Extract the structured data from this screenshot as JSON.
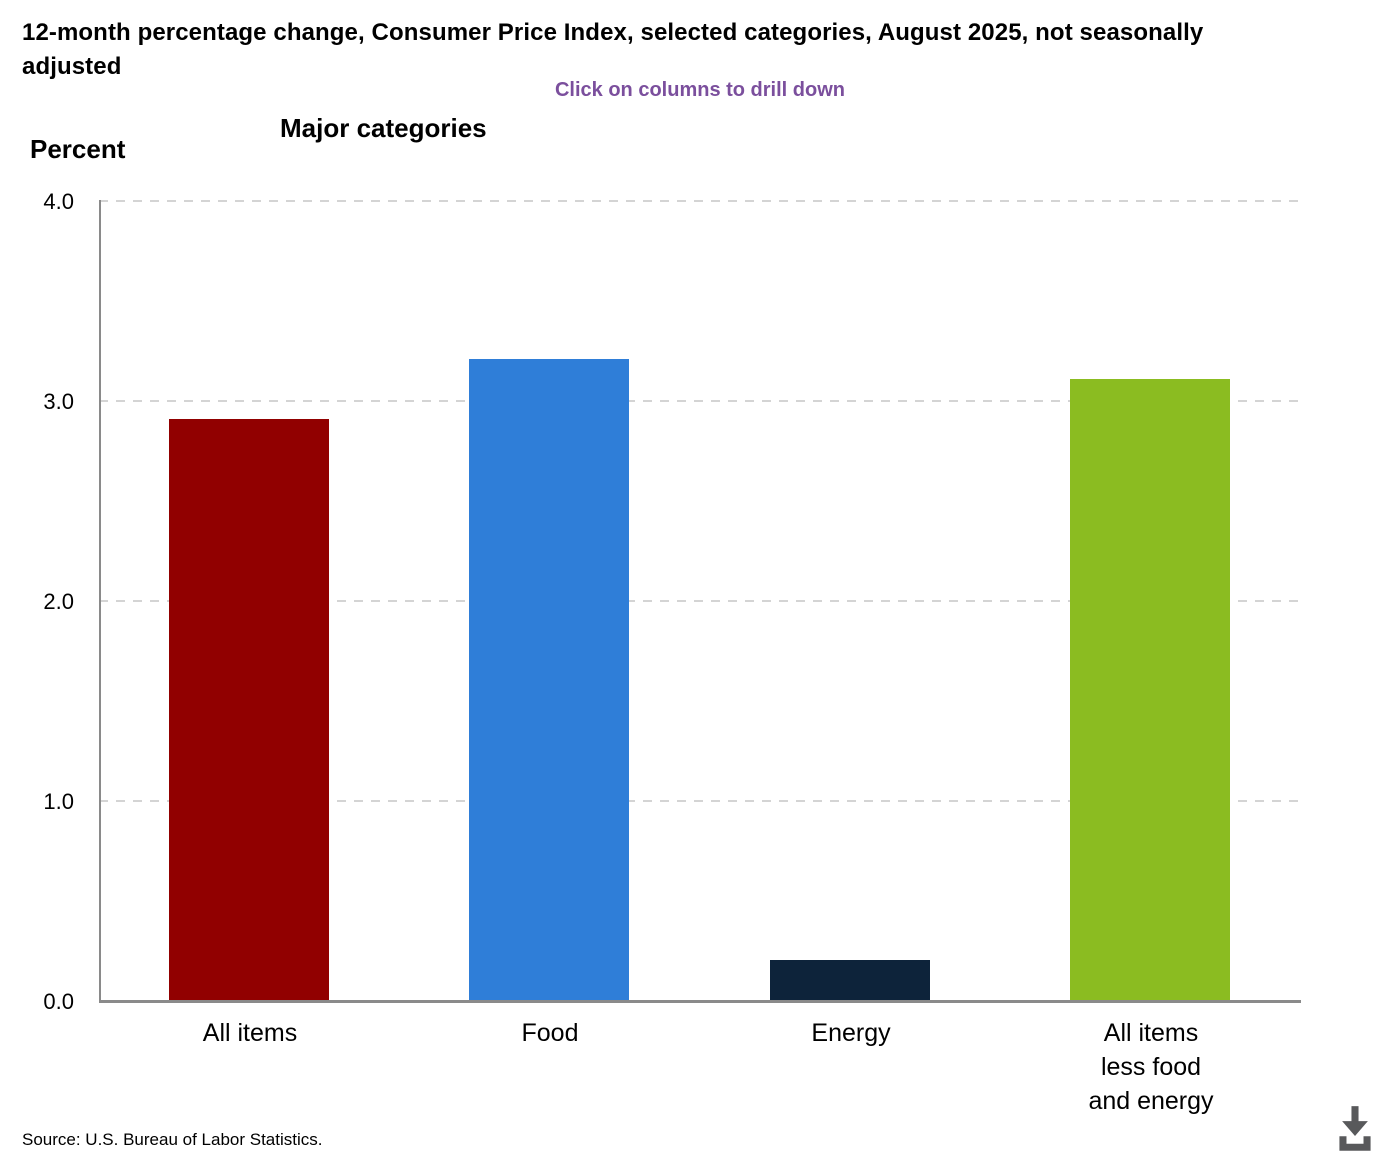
{
  "page": {
    "title": "12-month percentage change, Consumer Price Index, selected categories, August 2025, not seasonally adjusted",
    "drilldown_hint": "Click on columns to drill down",
    "source": "Source: U.S. Bureau of Labor Statistics."
  },
  "chart_data": {
    "type": "bar",
    "title": "Major categories",
    "ylabel": "Percent",
    "xlabel": "",
    "categories": [
      "All items",
      "Food",
      "Energy",
      "All items\nless food\nand energy"
    ],
    "values": [
      2.9,
      3.2,
      0.2,
      3.1
    ],
    "bar_colors": [
      "#910000",
      "#2f7ed8",
      "#0d233a",
      "#8bbc21"
    ],
    "ylim": [
      0.0,
      4.0
    ],
    "ytick_interval": 1.0,
    "yticks": [
      "4.0",
      "3.0",
      "2.0",
      "1.0",
      "0.0"
    ],
    "grid": "horizontal-dashed",
    "legend": "none"
  },
  "icons": {
    "download": "download-icon"
  },
  "theme": {
    "subtitle_color": "#7b4f9d",
    "axis_color": "#8a8a8a",
    "gridline_color": "#d4d4d4",
    "download_icon_color": "#58595b",
    "text_color": "#000000",
    "background": "#ffffff"
  }
}
